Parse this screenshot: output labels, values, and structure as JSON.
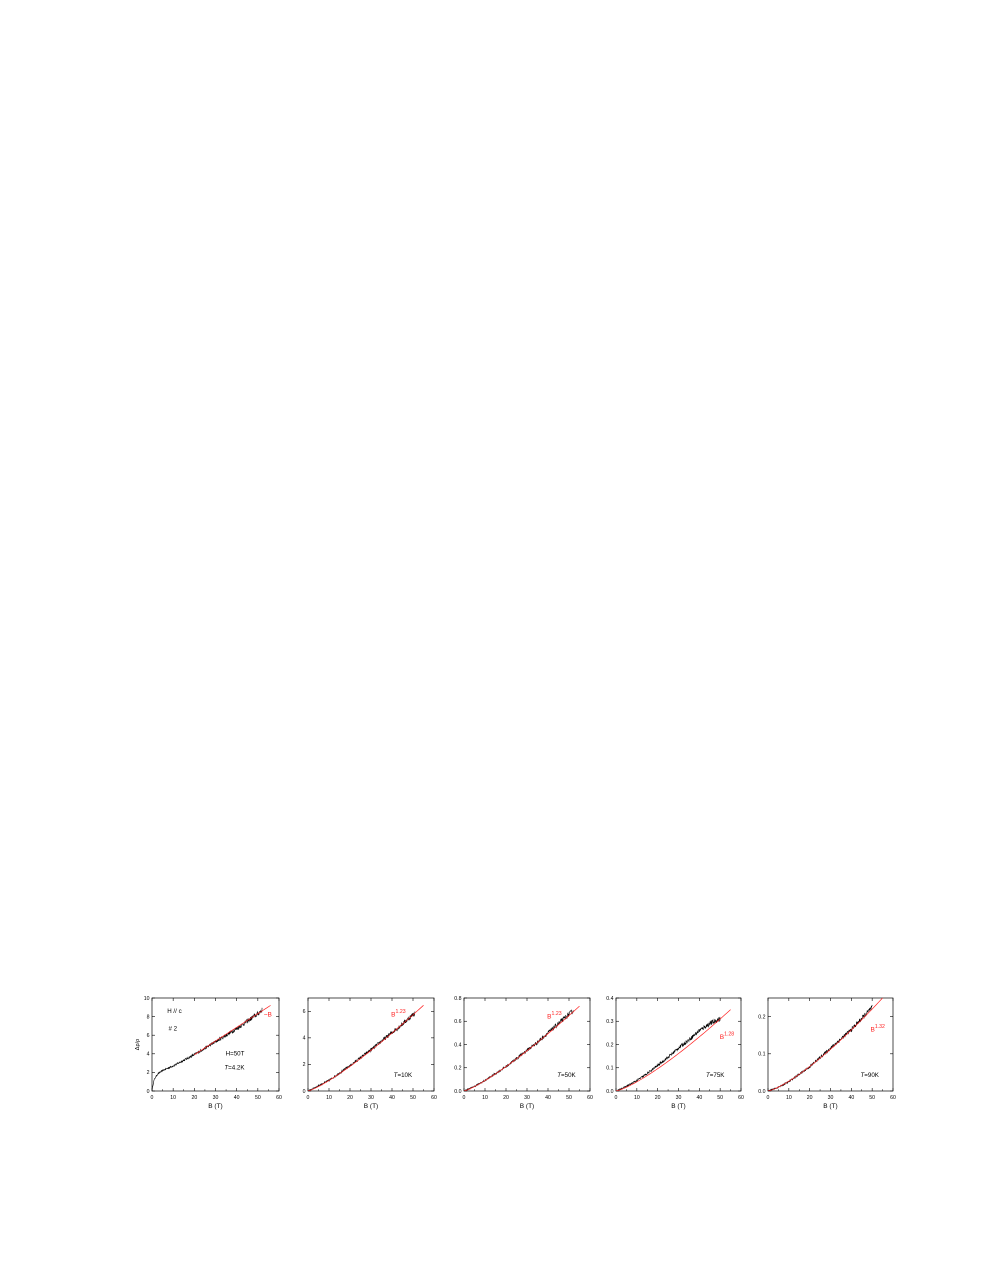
{
  "colors": {
    "data": "#000000",
    "fit": "#ff2020",
    "axis": "#000000"
  },
  "chart_data": [
    {
      "type": "line",
      "xlabel": "B (T)",
      "ylabel": "Δρ/ρ",
      "xlim": [
        0,
        60
      ],
      "ylim": [
        0,
        10
      ],
      "xticks": [
        "0",
        "10",
        "20",
        "30",
        "40",
        "50",
        "60"
      ],
      "yticks": [
        "0",
        "2",
        "4",
        "6",
        "8",
        "10"
      ],
      "annotations": [
        {
          "text": "H // c",
          "color": "black"
        },
        {
          "text": "# 2",
          "color": "black"
        },
        {
          "text": "H=50T",
          "color": "black"
        },
        {
          "text": "T=4.2K",
          "color": "black",
          "italic_prefix": "T"
        }
      ],
      "fit_label": {
        "base": "~B",
        "exponent": ""
      },
      "fit_exponent": 1.0,
      "data_curve": {
        "x": [
          0,
          0.5,
          1,
          2,
          3,
          5,
          8,
          10,
          15,
          20,
          25,
          30,
          35,
          40,
          45,
          50,
          52
        ],
        "y": [
          0,
          0.7,
          1.2,
          1.6,
          1.9,
          2.2,
          2.5,
          2.7,
          3.3,
          3.9,
          4.6,
          5.3,
          6.0,
          6.7,
          7.5,
          8.3,
          8.7
        ]
      },
      "fit_line": {
        "x": [
          20,
          56
        ],
        "y": [
          3.9,
          9.2
        ]
      }
    },
    {
      "type": "line",
      "xlabel": "B (T)",
      "ylabel": "",
      "xlim": [
        0,
        60
      ],
      "ylim": [
        0,
        7
      ],
      "xticks": [
        "0",
        "10",
        "20",
        "30",
        "40",
        "50",
        "60"
      ],
      "yticks": [
        "0",
        "2",
        "4",
        "6"
      ],
      "annotations": [
        {
          "text": "T=10K",
          "color": "black",
          "italic_prefix": "T"
        }
      ],
      "fit_label": {
        "base": "B",
        "exponent": "1.23"
      },
      "fit_exponent": 1.23,
      "data_curve": {
        "x": [
          0,
          5,
          10,
          15,
          20,
          25,
          30,
          35,
          40,
          45,
          50,
          51
        ],
        "y": [
          0,
          0.4,
          0.8,
          1.35,
          1.9,
          2.5,
          3.1,
          3.75,
          4.4,
          5.05,
          5.75,
          5.9
        ]
      },
      "fit_line": {
        "x": [
          0,
          55
        ],
        "y": [
          0,
          6.45
        ]
      }
    },
    {
      "type": "line",
      "xlabel": "B (T)",
      "ylabel": "",
      "xlim": [
        0,
        60
      ],
      "ylim": [
        0,
        0.8
      ],
      "xticks": [
        "0",
        "10",
        "20",
        "30",
        "40",
        "50",
        "60"
      ],
      "yticks": [
        "0.0",
        "0.2",
        "0.4",
        "0.6",
        "0.8"
      ],
      "annotations": [
        {
          "text": "T=50K",
          "color": "black",
          "italic_prefix": "T"
        }
      ],
      "fit_label": {
        "base": "B",
        "exponent": "1.23"
      },
      "fit_exponent": 1.23,
      "data_curve": {
        "x": [
          0,
          5,
          10,
          15,
          20,
          25,
          30,
          35,
          40,
          45,
          50,
          52
        ],
        "y": [
          0,
          0.04,
          0.09,
          0.15,
          0.21,
          0.28,
          0.35,
          0.42,
          0.5,
          0.58,
          0.66,
          0.69
        ]
      },
      "fit_line": {
        "x": [
          0,
          55
        ],
        "y": [
          0,
          0.73
        ]
      }
    },
    {
      "type": "line",
      "xlabel": "B (T)",
      "ylabel": "",
      "xlim": [
        0,
        60
      ],
      "ylim": [
        0,
        0.4
      ],
      "xticks": [
        "0",
        "10",
        "20",
        "30",
        "40",
        "50",
        "60"
      ],
      "yticks": [
        "0.0",
        "0.1",
        "0.2",
        "0.3",
        "0.4"
      ],
      "annotations": [
        {
          "text": "T=75K",
          "color": "black",
          "italic_prefix": "T"
        }
      ],
      "fit_label": {
        "base": "B",
        "exponent": "1.28"
      },
      "fit_exponent": 1.28,
      "data_curve": {
        "x": [
          0,
          5,
          10,
          15,
          20,
          25,
          30,
          35,
          40,
          45,
          50
        ],
        "y": [
          0,
          0.02,
          0.045,
          0.075,
          0.11,
          0.145,
          0.185,
          0.22,
          0.26,
          0.29,
          0.31
        ]
      },
      "fit_line": {
        "x": [
          0,
          55
        ],
        "y": [
          0,
          0.35
        ]
      }
    },
    {
      "type": "line",
      "xlabel": "B (T)",
      "ylabel": "",
      "xlim": [
        0,
        60
      ],
      "ylim": [
        0,
        0.25
      ],
      "xticks": [
        "0",
        "10",
        "20",
        "30",
        "40",
        "50",
        "60"
      ],
      "yticks": [
        "0.0",
        "0.1",
        "0.2"
      ],
      "annotations": [
        {
          "text": "T=90K",
          "color": "black",
          "italic_prefix": "T"
        }
      ],
      "fit_label": {
        "base": "B",
        "exponent": "1.32"
      },
      "fit_exponent": 1.32,
      "data_curve": {
        "x": [
          0,
          5,
          10,
          15,
          20,
          25,
          30,
          35,
          40,
          45,
          50
        ],
        "y": [
          0,
          0.01,
          0.025,
          0.045,
          0.065,
          0.09,
          0.115,
          0.14,
          0.165,
          0.195,
          0.225
        ]
      },
      "fit_line": {
        "x": [
          0,
          55
        ],
        "y": [
          0,
          0.25
        ]
      }
    }
  ]
}
